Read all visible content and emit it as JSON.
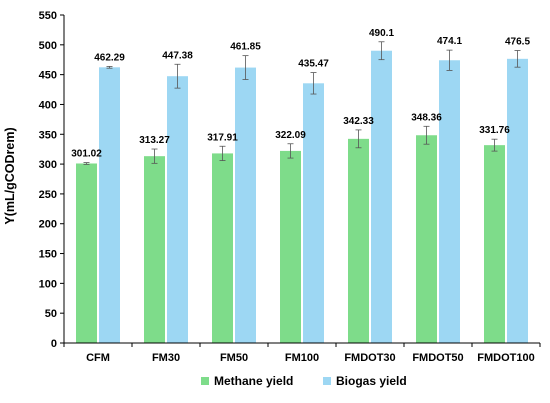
{
  "chart_data": {
    "type": "bar",
    "title": "",
    "xlabel": "",
    "ylabel": "Y(mL/gCODrem)",
    "ylim": [
      0,
      550
    ],
    "yticks": [
      0,
      50,
      100,
      150,
      200,
      250,
      300,
      350,
      400,
      450,
      500,
      550
    ],
    "grid": false,
    "legend_position": "bottom",
    "categories": [
      "CFM",
      "FM30",
      "FM50",
      "FM100",
      "FMDOT30",
      "FMDOT50",
      "FMDOT100"
    ],
    "series": [
      {
        "name": "Methane yield",
        "color": "#7edc8a",
        "values": [
          301.02,
          313.27,
          317.91,
          322.09,
          342.33,
          348.36,
          331.76
        ],
        "errors": [
          1.5,
          12,
          12,
          12,
          15,
          15,
          10
        ],
        "labels": [
          "301.02",
          "313.27",
          "317.91",
          "322.09",
          "342.33",
          "348.36",
          "331.76"
        ]
      },
      {
        "name": "Biogas yield",
        "color": "#9dd7f3",
        "values": [
          462.29,
          447.38,
          461.85,
          435.47,
          490.1,
          474.1,
          476.5
        ],
        "errors": [
          1.5,
          20,
          20,
          18,
          15,
          17,
          14
        ],
        "labels": [
          "462.29",
          "447.38",
          "461.85",
          "435.47",
          "490.1",
          "474.1",
          "476.5"
        ]
      }
    ]
  }
}
